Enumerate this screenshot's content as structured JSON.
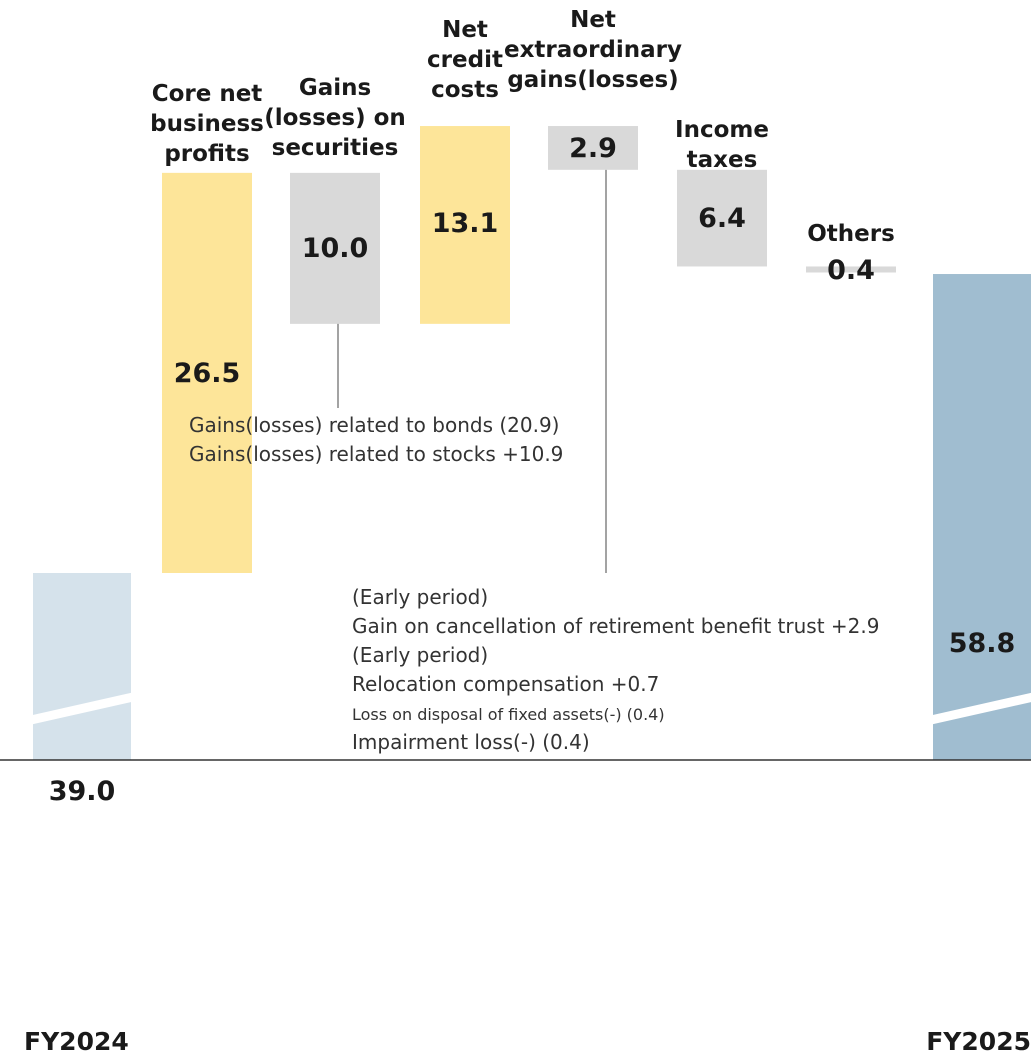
{
  "chart_data": {
    "type": "bar",
    "subtype": "waterfall",
    "categories": [
      "FY2024",
      "Core net business profits",
      "Gains (losses) on securities",
      "Net credit costs",
      "Net extraordinary gains(losses)",
      "Income taxes",
      "Others",
      "FY2025"
    ],
    "steps": [
      {
        "label": "FY2024",
        "label_lines": [],
        "value": 39.0,
        "value_label": "39.0",
        "kind": "total",
        "color": "#d5e2eb"
      },
      {
        "label": "Core net business profits",
        "label_lines": [
          "Core net",
          "business",
          "profits"
        ],
        "value": 26.5,
        "value_label": "26.5",
        "kind": "increase",
        "color": "#fde599"
      },
      {
        "label": "Gains (losses) on securities",
        "label_lines": [
          "Gains",
          "(losses) on",
          "securities"
        ],
        "value": -10.0,
        "value_label": "10.0",
        "kind": "decrease",
        "color": "#d9d9d9"
      },
      {
        "label": "Net credit costs",
        "label_lines": [
          "Net",
          "credit",
          "costs"
        ],
        "value": 13.1,
        "value_label": "13.1",
        "kind": "increase",
        "color": "#fde599"
      },
      {
        "label": "Net extraordinary gains(losses)",
        "label_lines": [
          "Net",
          "extraordinary",
          "gains(losses)"
        ],
        "value": -2.9,
        "value_label": "2.9",
        "kind": "decrease",
        "color": "#d9d9d9"
      },
      {
        "label": "Income taxes",
        "label_lines": [
          "Income",
          "taxes"
        ],
        "value": -6.4,
        "value_label": "6.4",
        "kind": "decrease",
        "color": "#d9d9d9"
      },
      {
        "label": "Others",
        "label_lines": [
          "Others"
        ],
        "value": -0.4,
        "value_label": "0.4",
        "kind": "decrease",
        "color": "#d9d9d9"
      },
      {
        "label": "FY2025",
        "label_lines": [],
        "value": 58.8,
        "value_label": "58.8",
        "kind": "total",
        "color": "#a0bdd0"
      }
    ],
    "axis_break": true,
    "grid": false,
    "annotations": {
      "securities": [
        "Gains(losses) related to bonds  (20.9)",
        "Gains(losses) related to stocks +10.9"
      ],
      "extraordinary": [
        {
          "text": "(Early period)",
          "small": false
        },
        {
          "text": "Gain on cancellation of retirement benefit trust +2.9",
          "small": false
        },
        {
          "text": "(Early period)",
          "small": false
        },
        {
          "text": "Relocation compensation +0.7",
          "small": false
        },
        {
          "text": "Loss on disposal of fixed assets(-)  (0.4)",
          "small": true
        },
        {
          "text": "Impairment loss(-)   (0.4)",
          "small": false
        }
      ]
    }
  }
}
